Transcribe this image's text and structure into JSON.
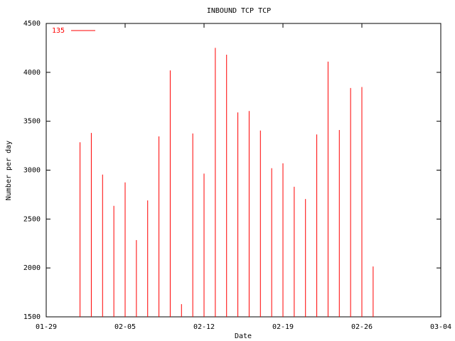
{
  "chart_data": {
    "type": "impulse",
    "title": "INBOUND TCP TCP",
    "x_label": "Date",
    "y_label": "Number per day",
    "x": [
      "02-01",
      "02-02",
      "02-03",
      "02-04",
      "02-05",
      "02-06",
      "02-07",
      "02-08",
      "02-09",
      "02-10",
      "02-11",
      "02-12",
      "02-13",
      "02-14",
      "02-15",
      "02-16",
      "02-17",
      "02-18",
      "02-19",
      "02-20",
      "02-21",
      "02-22",
      "02-23",
      "02-24",
      "02-25",
      "02-26",
      "02-27"
    ],
    "series": [
      {
        "name": "135",
        "color": "#ff0000",
        "values": [
          3285,
          3380,
          2955,
          2635,
          2875,
          2285,
          2690,
          3345,
          4020,
          1630,
          3375,
          2965,
          4250,
          4180,
          3590,
          3605,
          3405,
          3020,
          3070,
          2830,
          2705,
          3365,
          4110,
          3410,
          3840,
          3850,
          2015
        ]
      }
    ],
    "xlim": [
      "01-29",
      "03-04"
    ],
    "xticks": [
      "01-29",
      "02-05",
      "02-12",
      "02-19",
      "02-26",
      "03-04"
    ],
    "ylim": [
      1500,
      4500
    ],
    "yticks": [
      1500,
      2000,
      2500,
      3000,
      3500,
      4000,
      4500
    ],
    "legend": "top-left"
  }
}
